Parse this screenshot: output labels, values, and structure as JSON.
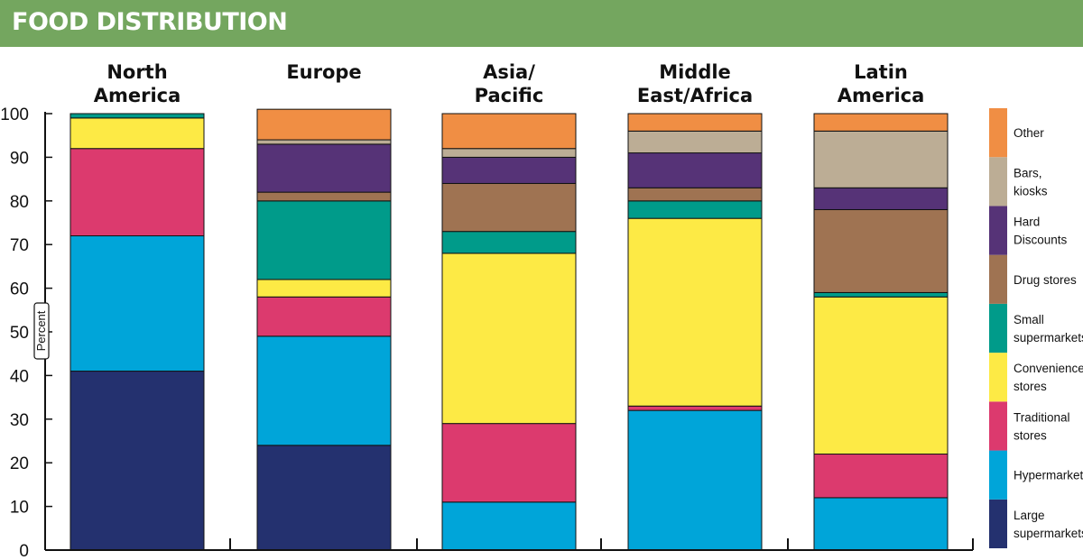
{
  "header": {
    "title": "FOOD DISTRIBUTION"
  },
  "colors": {
    "header_bg": "#74a65f",
    "Large supermarkets": "#24316f",
    "Hypermarkets": "#00a5d9",
    "Traditional stores": "#dc3a6e",
    "Convenience stores": "#fdea45",
    "Small supermarkets": "#009b8a",
    "Drug stores": "#9f7352",
    "Hard Discounts": "#563377",
    "Bars, kiosks": "#bcad95",
    "Other": "#f08e44"
  },
  "chart_data": {
    "type": "bar",
    "stacked": true,
    "title": "FOOD DISTRIBUTION",
    "ylabel": "Percent",
    "ylim": [
      0,
      100
    ],
    "yticks": [
      "0",
      "10",
      "20",
      "30",
      "40",
      "50",
      "60",
      "70",
      "80",
      "90",
      "100"
    ],
    "categories": [
      {
        "lines": [
          "North",
          "America"
        ]
      },
      {
        "lines": [
          "Europe"
        ]
      },
      {
        "lines": [
          "Asia/",
          "Pacific"
        ]
      },
      {
        "lines": [
          "Middle",
          "East/Africa"
        ]
      },
      {
        "lines": [
          "Latin",
          "America"
        ]
      }
    ],
    "series": [
      {
        "name": "Large supermarkets",
        "legend_lines": [
          "Large",
          "supermarkets"
        ],
        "values": [
          41,
          24,
          0,
          0,
          0
        ]
      },
      {
        "name": "Hypermarkets",
        "legend_lines": [
          "Hypermarkets"
        ],
        "values": [
          31,
          25,
          11,
          32,
          12
        ]
      },
      {
        "name": "Traditional stores",
        "legend_lines": [
          "Traditional",
          "stores"
        ],
        "values": [
          20,
          9,
          18,
          1,
          10
        ]
      },
      {
        "name": "Convenience stores",
        "legend_lines": [
          "Convenience",
          "stores"
        ],
        "values": [
          7,
          4,
          39,
          43,
          36
        ]
      },
      {
        "name": "Small supermarkets",
        "legend_lines": [
          "Small",
          "supermarkets"
        ],
        "values": [
          1,
          18,
          5,
          4,
          1
        ]
      },
      {
        "name": "Drug stores",
        "legend_lines": [
          "Drug stores"
        ],
        "values": [
          0,
          2,
          11,
          3,
          19
        ]
      },
      {
        "name": "Hard Discounts",
        "legend_lines": [
          "Hard",
          "Discounts"
        ],
        "values": [
          0,
          11,
          6,
          8,
          5
        ]
      },
      {
        "name": "Bars, kiosks",
        "legend_lines": [
          "Bars,",
          "kiosks"
        ],
        "values": [
          0,
          1,
          2,
          5,
          13
        ]
      },
      {
        "name": "Other",
        "legend_lines": [
          "Other"
        ],
        "values": [
          0,
          7,
          8,
          4,
          4
        ]
      }
    ],
    "legend_position": "right",
    "grid": false
  }
}
